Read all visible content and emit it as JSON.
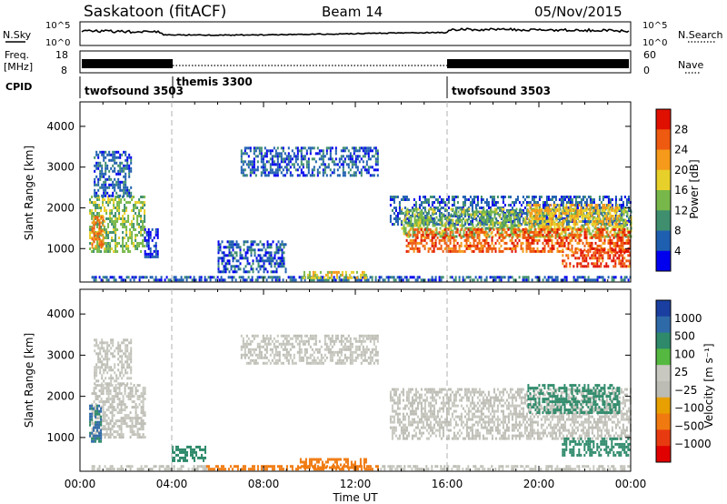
{
  "header": {
    "title": "Saskatoon (fitACF)",
    "beam": "Beam 14",
    "date": "05/Nov/2015"
  },
  "status_panels": {
    "nsky_label": "N.Sky",
    "nsearch_label": "N.Search",
    "noise_ticks": [
      "10^5",
      "10^0"
    ],
    "freq_label_1": "Freq.",
    "freq_label_2": "[MHz]",
    "freq_ticks": [
      "18",
      "8"
    ],
    "nave_label": "Nave",
    "nave_ticks": [
      "60",
      "0"
    ],
    "cpid_label": "CPID",
    "cpid_segments": [
      {
        "name": "twofsound 3503",
        "start_hour": 0,
        "end_hour": 4
      },
      {
        "name": "themis 3300",
        "start_hour": 4,
        "end_hour": 16
      },
      {
        "name": "twofsound 3503",
        "start_hour": 16,
        "end_hour": 24
      }
    ]
  },
  "colors": {
    "power_scale": [
      "#0000ee",
      "#1f5fb0",
      "#3f8f6f",
      "#78b84a",
      "#e8d02a",
      "#f59a1a",
      "#ee5a10",
      "#e01000"
    ],
    "velocity_scale": [
      "#1a3fa0",
      "#2f6aa8",
      "#2e8a6a",
      "#55b840",
      "#c8c8c0",
      "#bcbcb4",
      "#e8a000",
      "#f07a10",
      "#e83a10",
      "#e00000"
    ],
    "guide_line": "#b0b0b0"
  },
  "chart_data": [
    {
      "type": "heatmap",
      "panel": "power",
      "ylabel": "Slant Range [km]",
      "ylim": [
        180,
        4600
      ],
      "yticks": [
        "1000",
        "2000",
        "3000",
        "4000"
      ],
      "xlim_hours": [
        0,
        24
      ],
      "xticks": [
        "00:00",
        "04:00",
        "08:00",
        "12:00",
        "16:00",
        "20:00",
        "00:00"
      ],
      "colorbar": {
        "label": "Power [dB]",
        "ticks": [
          "28",
          "24",
          "20",
          "16",
          "12",
          "8",
          "4"
        ],
        "range": [
          0,
          32
        ]
      },
      "regions": [
        {
          "t0": 0.4,
          "t1": 2.8,
          "r0": 900,
          "r1": 2300,
          "value": 14
        },
        {
          "t0": 0.5,
          "t1": 1.0,
          "r0": 1000,
          "r1": 1800,
          "value": 24
        },
        {
          "t0": 0.6,
          "t1": 2.2,
          "r0": 2300,
          "r1": 3400,
          "value": 6
        },
        {
          "t0": 2.8,
          "t1": 3.4,
          "r0": 800,
          "r1": 1500,
          "value": 4
        },
        {
          "t0": 0.5,
          "t1": 24.0,
          "r0": 200,
          "r1": 330,
          "value": 6
        },
        {
          "t0": 6.0,
          "t1": 9.0,
          "r0": 450,
          "r1": 1200,
          "value": 6
        },
        {
          "t0": 7.0,
          "t1": 13.0,
          "r0": 2800,
          "r1": 3500,
          "value": 6
        },
        {
          "t0": 9.5,
          "t1": 12.5,
          "r0": 250,
          "r1": 450,
          "value": 18
        },
        {
          "t0": 13.5,
          "t1": 24.0,
          "r0": 1600,
          "r1": 2300,
          "value": 6
        },
        {
          "t0": 14.0,
          "t1": 24.0,
          "r0": 1300,
          "r1": 2000,
          "value": 14
        },
        {
          "t0": 14.2,
          "t1": 24.0,
          "r0": 950,
          "r1": 1500,
          "value": 26
        },
        {
          "t0": 19.5,
          "t1": 23.5,
          "r0": 1500,
          "r1": 2100,
          "value": 20
        },
        {
          "t0": 21.0,
          "t1": 24.0,
          "r0": 550,
          "r1": 1000,
          "value": 27
        }
      ]
    },
    {
      "type": "heatmap",
      "panel": "velocity",
      "ylabel": "Slant Range [km]",
      "ylim": [
        180,
        4600
      ],
      "yticks": [
        "1000",
        "2000",
        "3000",
        "4000"
      ],
      "xlim_hours": [
        0,
        24
      ],
      "xticks": [
        "00:00",
        "04:00",
        "08:00",
        "12:00",
        "16:00",
        "20:00",
        "00:00"
      ],
      "xlabel": "Time UT",
      "colorbar": {
        "label": "Velocity [m s⁻¹]",
        "ticks": [
          "1000",
          "500",
          "100",
          "25",
          "−25",
          "−100",
          "−500",
          "−1000"
        ]
      },
      "regions": [
        {
          "t0": 0.5,
          "t1": 2.8,
          "r0": 1000,
          "r1": 2300,
          "value": 0
        },
        {
          "t0": 0.4,
          "t1": 0.9,
          "r0": 900,
          "r1": 1800,
          "value": 300
        },
        {
          "t0": 0.6,
          "t1": 2.2,
          "r0": 2300,
          "r1": 3400,
          "value": 0
        },
        {
          "t0": 0.5,
          "t1": 5.5,
          "r0": 200,
          "r1": 330,
          "value": 0
        },
        {
          "t0": 4.0,
          "t1": 5.5,
          "r0": 450,
          "r1": 800,
          "value": 80
        },
        {
          "t0": 5.5,
          "t1": 13.0,
          "r0": 200,
          "r1": 330,
          "value": -120
        },
        {
          "t0": 9.5,
          "t1": 12.5,
          "r0": 250,
          "r1": 500,
          "value": -200
        },
        {
          "t0": 7.0,
          "t1": 13.0,
          "r0": 2800,
          "r1": 3500,
          "value": 0
        },
        {
          "t0": 13.5,
          "t1": 24.0,
          "r0": 950,
          "r1": 2200,
          "value": 0
        },
        {
          "t0": 19.5,
          "t1": 23.5,
          "r0": 1600,
          "r1": 2300,
          "value": 200
        },
        {
          "t0": 21.0,
          "t1": 24.0,
          "r0": 550,
          "r1": 1000,
          "value": 90
        },
        {
          "t0": 13.0,
          "t1": 24.0,
          "r0": 200,
          "r1": 330,
          "value": 0
        }
      ]
    }
  ]
}
